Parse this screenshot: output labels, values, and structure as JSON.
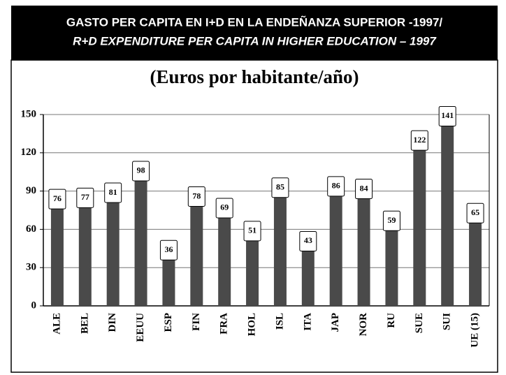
{
  "chart_data": {
    "type": "bar",
    "title": "GASTO PER CAPITA EN I+D EN LA ENDEÑANZA SUPERIOR -1997/",
    "title_en": "R+D EXPENDITURE PER CAPITA IN HIGHER EDUCATION – 1997",
    "subtitle": "(Euros por habitante/año)",
    "categories": [
      "ALE",
      "BEL",
      "DIN",
      "EEUU",
      "ESP",
      "FIN",
      "FRA",
      "HOL",
      "ISL",
      "ITA",
      "JAP",
      "NOR",
      "RU",
      "SUE",
      "SUI",
      "UE (15)"
    ],
    "values": [
      76,
      77,
      81,
      98,
      36,
      78,
      69,
      51,
      85,
      43,
      86,
      84,
      59,
      122,
      141,
      65
    ],
    "color": "#4a4a4a",
    "ylim": [
      0,
      150
    ],
    "yticks": [
      0,
      30,
      60,
      90,
      120,
      150
    ],
    "grid": true
  }
}
